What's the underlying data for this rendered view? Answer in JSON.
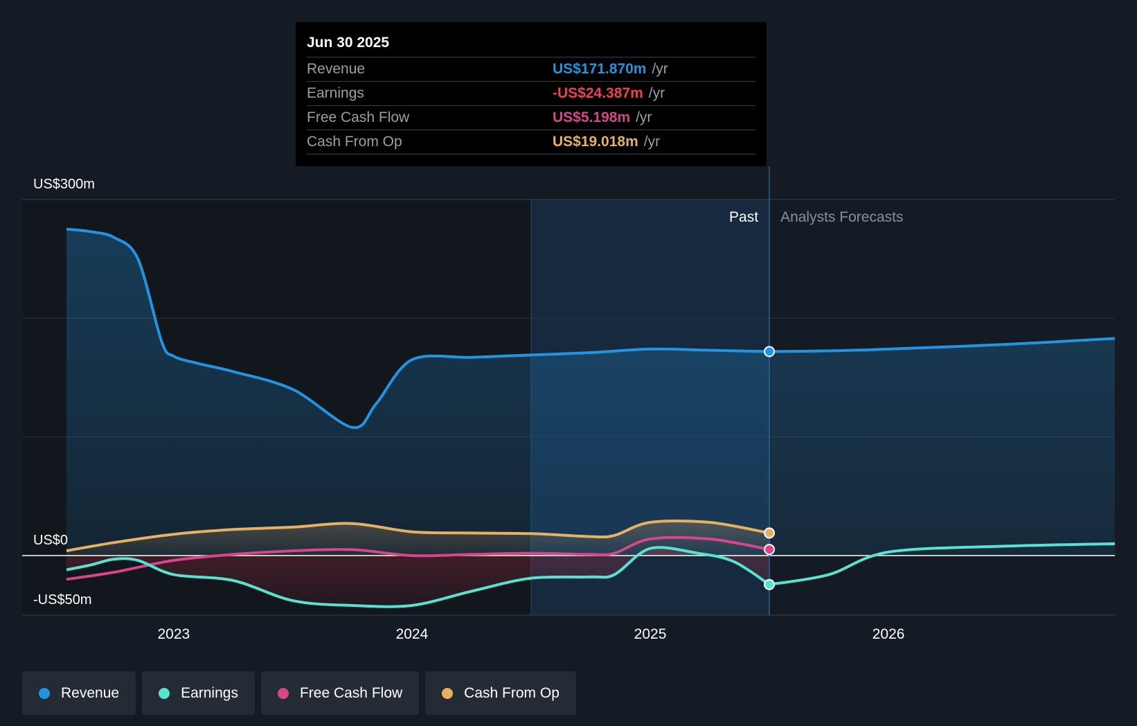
{
  "tooltip": {
    "date": "Jun 30 2025",
    "rows": [
      {
        "label": "Revenue",
        "value": "US$171.870m",
        "unit": "/yr",
        "color": "#2394df"
      },
      {
        "label": "Earnings",
        "value": "-US$24.387m",
        "unit": "/yr",
        "color": "#e64553"
      },
      {
        "label": "Free Cash Flow",
        "value": "US$5.198m",
        "unit": "/yr",
        "color": "#d7468a"
      },
      {
        "label": "Cash From Op",
        "value": "US$19.018m",
        "unit": "/yr",
        "color": "#e8b065"
      }
    ]
  },
  "legend": [
    {
      "label": "Revenue",
      "color": "#2394df"
    },
    {
      "label": "Earnings",
      "color": "#58e2d0"
    },
    {
      "label": "Free Cash Flow",
      "color": "#d7468a"
    },
    {
      "label": "Cash From Op",
      "color": "#e8b065"
    }
  ],
  "chart_data": {
    "type": "line",
    "title": "",
    "xlabel": "",
    "ylabel": "",
    "y_axis_labels": [
      {
        "value": 300,
        "label": "US$300m"
      },
      {
        "value": 0,
        "label": "US$0"
      },
      {
        "value": -50,
        "label": "-US$50m"
      }
    ],
    "ylim": [
      -50,
      300
    ],
    "xlim": [
      2022.55,
      2026.95
    ],
    "x_ticks": [
      {
        "value": 2023.0,
        "label": "2023"
      },
      {
        "value": 2024.0,
        "label": "2024"
      },
      {
        "value": 2025.0,
        "label": "2025"
      },
      {
        "value": 2026.0,
        "label": "2026"
      }
    ],
    "past_label": "Past",
    "forecast_label": "Analysts Forecasts",
    "past_end": 2025.5,
    "highlight_start": 2024.5,
    "series": [
      {
        "name": "Revenue",
        "color": "#2394df",
        "values": [
          [
            2022.55,
            275
          ],
          [
            2022.65,
            273
          ],
          [
            2022.75,
            268
          ],
          [
            2022.85,
            250
          ],
          [
            2022.95,
            180
          ],
          [
            2023.0,
            168
          ],
          [
            2023.1,
            162
          ],
          [
            2023.25,
            155
          ],
          [
            2023.5,
            140
          ],
          [
            2023.75,
            108
          ],
          [
            2023.85,
            128
          ],
          [
            2024.0,
            165
          ],
          [
            2024.25,
            167
          ],
          [
            2024.5,
            169
          ],
          [
            2024.75,
            171
          ],
          [
            2025.0,
            174
          ],
          [
            2025.25,
            173
          ],
          [
            2025.5,
            171.87
          ]
        ],
        "forecast": [
          [
            2025.5,
            171.87
          ],
          [
            2025.75,
            172.5
          ],
          [
            2026.0,
            174
          ],
          [
            2026.5,
            178
          ],
          [
            2026.95,
            183
          ]
        ]
      },
      {
        "name": "Earnings",
        "color": "#58e2d0",
        "values": [
          [
            2022.55,
            -12
          ],
          [
            2022.65,
            -8
          ],
          [
            2022.75,
            -3
          ],
          [
            2022.85,
            -4
          ],
          [
            2023.0,
            -16
          ],
          [
            2023.25,
            -21
          ],
          [
            2023.5,
            -38
          ],
          [
            2023.75,
            -42
          ],
          [
            2024.0,
            -42
          ],
          [
            2024.25,
            -30
          ],
          [
            2024.5,
            -19
          ],
          [
            2024.75,
            -18
          ],
          [
            2024.85,
            -16
          ],
          [
            2025.0,
            6
          ],
          [
            2025.2,
            2
          ],
          [
            2025.35,
            -5
          ],
          [
            2025.5,
            -24.387
          ]
        ],
        "forecast": [
          [
            2025.5,
            -24.387
          ],
          [
            2025.75,
            -16
          ],
          [
            2026.0,
            3
          ],
          [
            2026.5,
            8
          ],
          [
            2026.95,
            10
          ]
        ]
      },
      {
        "name": "Free Cash Flow",
        "color": "#d7468a",
        "values": [
          [
            2022.55,
            -20
          ],
          [
            2022.75,
            -14
          ],
          [
            2023.0,
            -4
          ],
          [
            2023.25,
            1
          ],
          [
            2023.5,
            4
          ],
          [
            2023.75,
            5
          ],
          [
            2024.0,
            0
          ],
          [
            2024.25,
            1
          ],
          [
            2024.5,
            2
          ],
          [
            2024.75,
            1
          ],
          [
            2024.85,
            2
          ],
          [
            2025.0,
            14
          ],
          [
            2025.25,
            14
          ],
          [
            2025.5,
            5.198
          ]
        ]
      },
      {
        "name": "Cash From Op",
        "color": "#e8b065",
        "values": [
          [
            2022.55,
            4
          ],
          [
            2022.75,
            11
          ],
          [
            2023.0,
            18
          ],
          [
            2023.25,
            22
          ],
          [
            2023.5,
            24
          ],
          [
            2023.75,
            27
          ],
          [
            2024.0,
            20
          ],
          [
            2024.25,
            19
          ],
          [
            2024.5,
            18.5
          ],
          [
            2024.75,
            16
          ],
          [
            2024.85,
            17
          ],
          [
            2025.0,
            28
          ],
          [
            2025.25,
            28
          ],
          [
            2025.5,
            19.018
          ]
        ]
      }
    ]
  }
}
